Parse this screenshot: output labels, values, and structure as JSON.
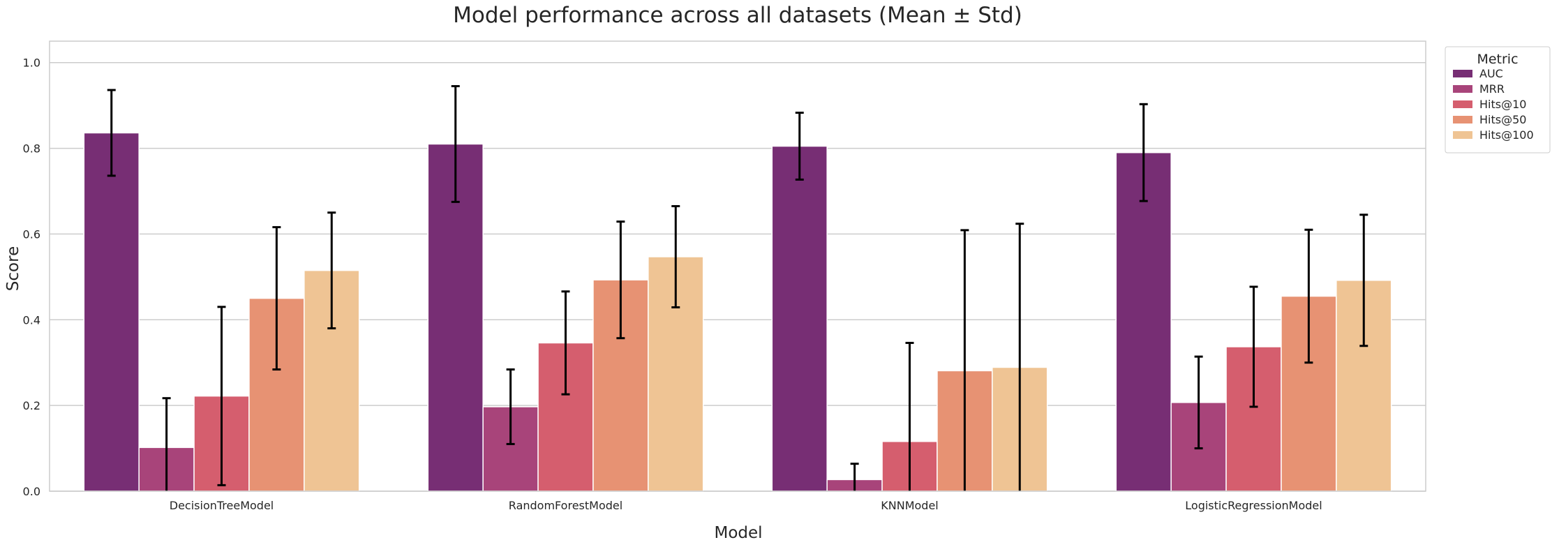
{
  "chart_data": {
    "type": "bar",
    "title": "Model performance across all datasets (Mean ± Std)",
    "xlabel": "Model",
    "ylabel": "Score",
    "ylim": [
      0,
      1.05
    ],
    "yticks": [
      "0.0",
      "0.2",
      "0.4",
      "0.6",
      "0.8",
      "1.0"
    ],
    "grid": true,
    "legend_position": "outside-top-right",
    "legend_title": "Metric",
    "categories": [
      "DecisionTreeModel",
      "RandomForestModel",
      "KNNModel",
      "LogisticRegressionModel"
    ],
    "series": [
      {
        "name": "AUC",
        "color": "#772e74",
        "values": [
          0.836,
          0.81,
          0.805,
          0.79
        ],
        "std": [
          0.1,
          0.135,
          0.078,
          0.113
        ]
      },
      {
        "name": "MRR",
        "color": "#a8447a",
        "values": [
          0.102,
          0.197,
          0.027,
          0.207
        ],
        "std": [
          0.115,
          0.087,
          0.037,
          0.107
        ]
      },
      {
        "name": "Hits@10",
        "color": "#d55e6e",
        "values": [
          0.222,
          0.346,
          0.116,
          0.337
        ],
        "std": [
          0.208,
          0.12,
          0.23,
          0.14
        ]
      },
      {
        "name": "Hits@50",
        "color": "#e79273",
        "values": [
          0.45,
          0.493,
          0.281,
          0.455
        ],
        "std": [
          0.166,
          0.136,
          0.328,
          0.155
        ]
      },
      {
        "name": "Hits@100",
        "color": "#efc494",
        "values": [
          0.515,
          0.547,
          0.289,
          0.492
        ],
        "std": [
          0.135,
          0.118,
          0.335,
          0.153
        ]
      }
    ]
  }
}
